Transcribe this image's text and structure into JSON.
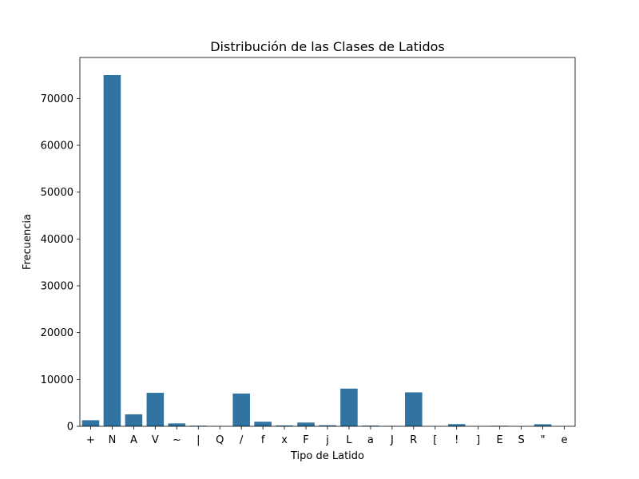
{
  "chart_data": {
    "type": "bar",
    "title": "Distribución de las Clases de Latidos",
    "xlabel": "Tipo de Latido",
    "ylabel": "Frecuencia",
    "categories": [
      "+",
      "N",
      "A",
      "V",
      "~",
      "|",
      "Q",
      "/",
      "f",
      "x",
      "F",
      "j",
      "L",
      "a",
      "J",
      "R",
      "[",
      "!",
      "]",
      "E",
      "S",
      "\"",
      "e"
    ],
    "values": [
      1300,
      75000,
      2550,
      7150,
      620,
      130,
      30,
      7000,
      980,
      190,
      800,
      230,
      8050,
      150,
      80,
      7250,
      6,
      470,
      6,
      110,
      2,
      440,
      16
    ],
    "yticks": [
      0,
      10000,
      20000,
      30000,
      40000,
      50000,
      60000,
      70000
    ],
    "ylim": [
      0,
      78750
    ],
    "bar_color": "#3274a1",
    "grid": false
  }
}
